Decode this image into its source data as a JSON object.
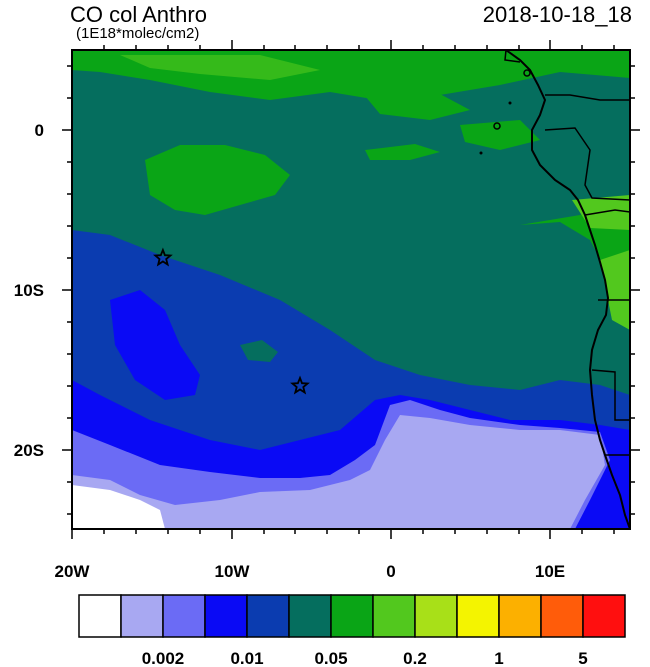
{
  "header": {
    "title": "CO col Anthro",
    "units": "(1E18*molec/cm2)",
    "date": "2018-10-18_18"
  },
  "axes": {
    "x_ticks": [
      "20W",
      "10W",
      "0",
      "10E"
    ],
    "y_ticks": [
      "0",
      "10S",
      "20S"
    ]
  },
  "colorbar": {
    "colors": [
      "#ffffff",
      "#a8a8f2",
      "#6b6bf5",
      "#0a0af5",
      "#0b3cb0",
      "#056e5e",
      "#0aa516",
      "#52c81e",
      "#a8e018",
      "#f4f400",
      "#fcb000",
      "#ff5c0a",
      "#ff0f0f"
    ],
    "labels": [
      "0.002",
      "0.01",
      "0.05",
      "0.2",
      "1",
      "5"
    ]
  },
  "markers": [
    {
      "name": "star-marker-1",
      "lon": -14.3,
      "lat": -8.0
    },
    {
      "name": "star-marker-2",
      "lon": -5.7,
      "lat": -16.0
    }
  ]
}
